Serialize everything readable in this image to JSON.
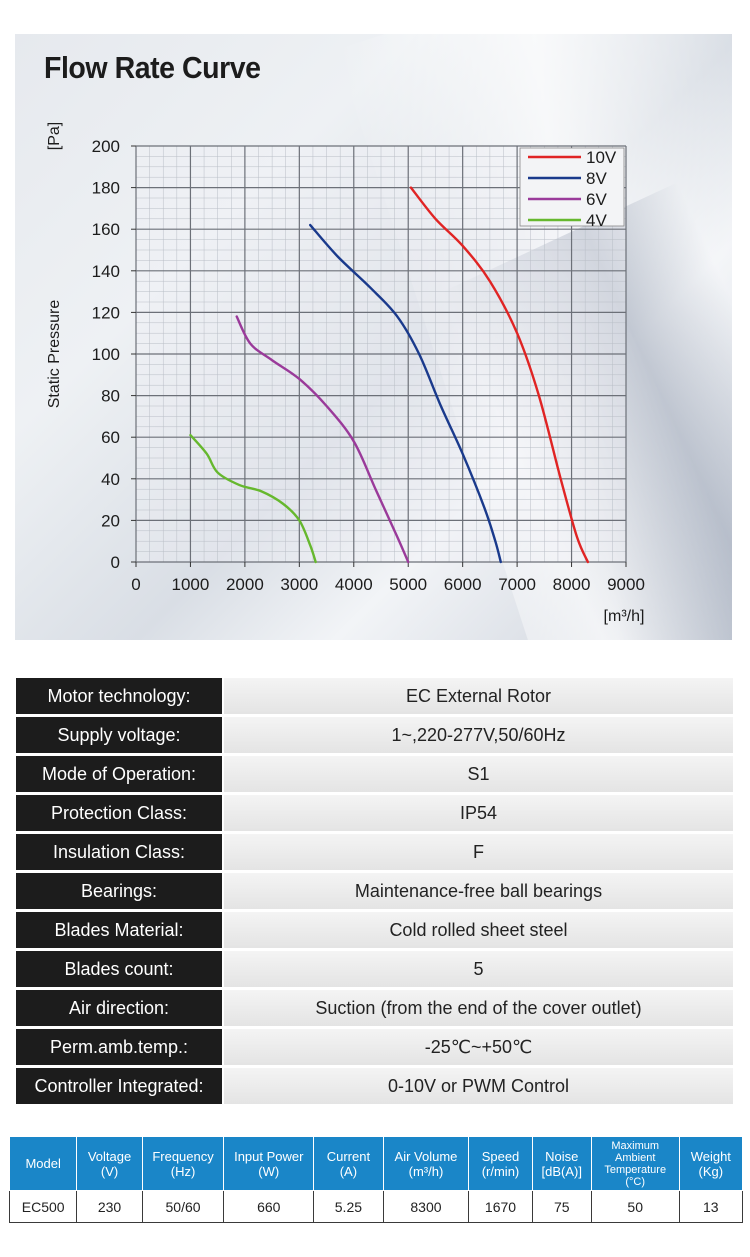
{
  "chart_data": {
    "type": "line",
    "title": "Flow Rate Curve",
    "ylabel": "Static Pressure",
    "yunit": "[Pa]",
    "xunit": "[m³/h]",
    "xlim": [
      0,
      9000
    ],
    "ylim": [
      0,
      200
    ],
    "xticks": [
      0,
      1000,
      2000,
      3000,
      4000,
      5000,
      6000,
      7000,
      8000,
      9000
    ],
    "yticks": [
      0,
      20,
      40,
      60,
      80,
      100,
      120,
      140,
      160,
      180,
      200
    ],
    "grid": true,
    "legend_position": "top-right",
    "series": [
      {
        "name": "10V",
        "color": "#e02424",
        "points": [
          [
            5050,
            180
          ],
          [
            5500,
            165
          ],
          [
            6000,
            152
          ],
          [
            6500,
            135
          ],
          [
            7000,
            110
          ],
          [
            7400,
            80
          ],
          [
            7800,
            40
          ],
          [
            8100,
            12
          ],
          [
            8300,
            0
          ]
        ]
      },
      {
        "name": "8V",
        "color": "#1a3a8c",
        "points": [
          [
            3200,
            162
          ],
          [
            3700,
            147
          ],
          [
            4300,
            132
          ],
          [
            4800,
            118
          ],
          [
            5200,
            100
          ],
          [
            5600,
            75
          ],
          [
            6000,
            52
          ],
          [
            6400,
            26
          ],
          [
            6600,
            10
          ],
          [
            6700,
            0
          ]
        ]
      },
      {
        "name": "6V",
        "color": "#9a3a9a",
        "points": [
          [
            1850,
            118
          ],
          [
            2100,
            105
          ],
          [
            2500,
            97
          ],
          [
            3000,
            88
          ],
          [
            3500,
            75
          ],
          [
            4000,
            58
          ],
          [
            4400,
            35
          ],
          [
            4800,
            12
          ],
          [
            5000,
            0
          ]
        ]
      },
      {
        "name": "4V",
        "color": "#66b82e",
        "points": [
          [
            1000,
            61
          ],
          [
            1300,
            52
          ],
          [
            1500,
            43
          ],
          [
            1900,
            37
          ],
          [
            2300,
            34
          ],
          [
            2700,
            28
          ],
          [
            3000,
            20
          ],
          [
            3200,
            8
          ],
          [
            3300,
            0
          ]
        ]
      }
    ]
  },
  "specs": [
    {
      "label": "Motor technology:",
      "value": "EC External Rotor"
    },
    {
      "label": "Supply voltage:",
      "value": "1~,220-277V,50/60Hz"
    },
    {
      "label": "Mode of Operation:",
      "value": "S1"
    },
    {
      "label": "Protection Class:",
      "value": "IP54"
    },
    {
      "label": "Insulation Class:",
      "value": "F"
    },
    {
      "label": "Bearings:",
      "value": "Maintenance-free ball bearings"
    },
    {
      "label": "Blades Material:",
      "value": "Cold rolled sheet steel"
    },
    {
      "label": "Blades count:",
      "value": "5"
    },
    {
      "label": "Air direction:",
      "value": "Suction (from the end of the cover outlet)"
    },
    {
      "label": "Perm.amb.temp.:",
      "value": "-25℃~+50℃"
    },
    {
      "label": "Controller Integrated:",
      "value": "0-10V or PWM Control"
    }
  ],
  "model_table": {
    "headers": [
      {
        "name": "Model",
        "unit": ""
      },
      {
        "name": "Voltage",
        "unit": "(V)"
      },
      {
        "name": "Frequency",
        "unit": "(Hz)"
      },
      {
        "name": "Input Power",
        "unit": "(W)"
      },
      {
        "name": "Current",
        "unit": "(A)"
      },
      {
        "name": "Air Volume",
        "unit": "(m³/h)"
      },
      {
        "name": "Speed",
        "unit": "(r/min)"
      },
      {
        "name": "Noise",
        "unit": "[dB(A)]"
      },
      {
        "name": "Maximum Ambient Temperature",
        "unit": "(°C)"
      },
      {
        "name": "Weight",
        "unit": "(Kg)"
      }
    ],
    "rows": [
      [
        "EC500",
        "230",
        "50/60",
        "660",
        "5.25",
        "8300",
        "1670",
        "75",
        "50",
        "13"
      ]
    ]
  },
  "colors": {
    "label_bg": "#1c1c1c",
    "header_bg": "#1a86c8"
  }
}
